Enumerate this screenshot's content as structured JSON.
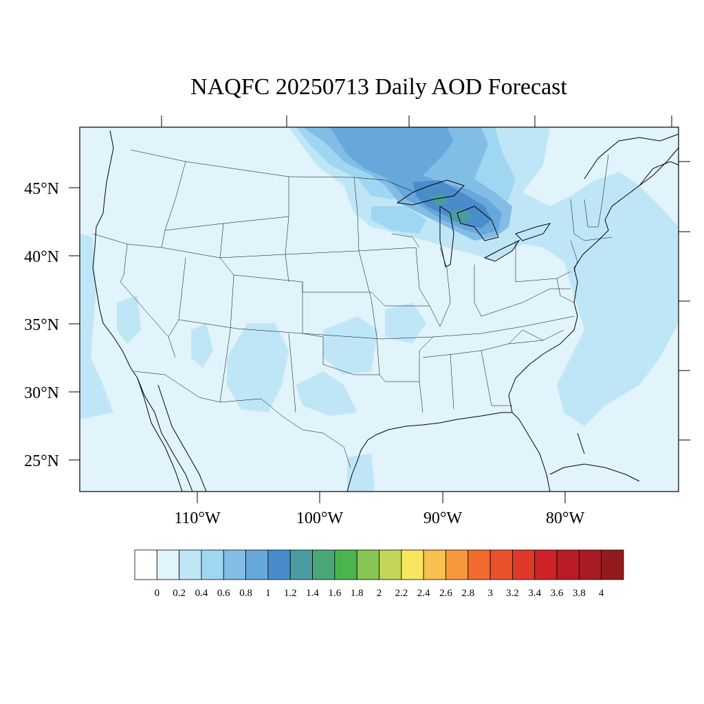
{
  "title": "NAQFC 20250713 Daily AOD Forecast",
  "lat_labels": [
    "45°N",
    "40°N",
    "35°N",
    "30°N",
    "25°N"
  ],
  "lon_labels": [
    "110°W",
    "100°W",
    "90°W",
    "80°W"
  ],
  "colorbar": {
    "levels": [
      "0",
      "0.2",
      "0.4",
      "0.6",
      "0.8",
      "1",
      "1.2",
      "1.4",
      "1.6",
      "1.8",
      "2",
      "2.2",
      "2.4",
      "2.6",
      "2.8",
      "3",
      "3.2",
      "3.4",
      "3.6",
      "3.8",
      "4"
    ],
    "colors": [
      "#ffffff",
      "#e1f3fb",
      "#bfe6f7",
      "#9fd6f2",
      "#82bde6",
      "#66a8dc",
      "#4a8ccb",
      "#4a9ca0",
      "#4aa878",
      "#4ab54c",
      "#86c553",
      "#c3d65a",
      "#f7e65d",
      "#f8c04e",
      "#f7983f",
      "#f26a2e",
      "#e9522c",
      "#de3a27",
      "#cf2229",
      "#b91c26",
      "#a81b23",
      "#931b1d"
    ]
  },
  "colors": {
    "background_aod": "#e1f3fb",
    "border": "#000000"
  }
}
